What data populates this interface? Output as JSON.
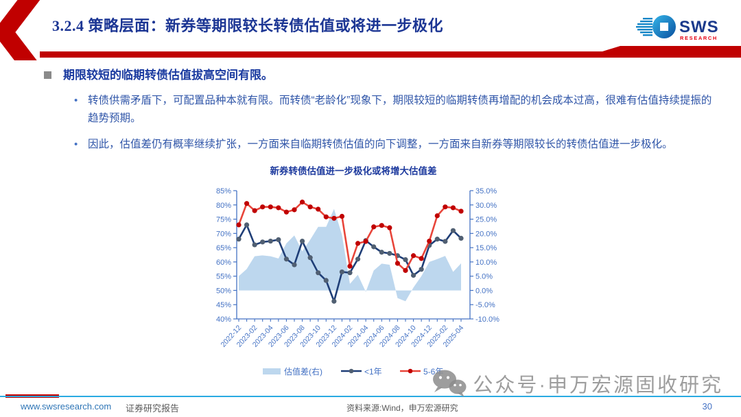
{
  "slide": {
    "title": "3.2.4 策略层面：新券等期限较长转债估值或将进一步极化"
  },
  "logo": {
    "text": "SWS",
    "subtext": "RESEARCH"
  },
  "bullets": {
    "heading": "期限较短的临期转债估值拔高空间有限。",
    "items": [
      "转债供需矛盾下，可配置品种本就有限。而转债“老龄化”现象下，期限较短的临期转债再增配的机会成本过高，很难有估值持续提振的趋势预期。",
      "因此，估值差仍有概率继续扩张，一方面来自临期转债估值的向下调整，一方面来自新券等期限较长的转债估值进一步极化。"
    ]
  },
  "watermark": {
    "text": "公众号·申万宏源固收研究"
  },
  "footer": {
    "website": "www.swsresearch.com",
    "report_type": "证券研究报告",
    "source": "资料来源:Wind，申万宏源研究",
    "page": "30"
  },
  "colors": {
    "accent_red": "#c00000",
    "title_blue": "#1c3694",
    "body_blue": "#2f55a8",
    "axis_blue": "#4472c4",
    "area_fill": "#bdd7ee",
    "line_lt1yr": "#1f3e77",
    "marker_lt1yr": "#505f72",
    "line_5_6yr": "#e8453a",
    "marker_5_6yr": "#c00000",
    "footer_line": "#29abe2"
  },
  "chart_data": {
    "type": "line",
    "title": "新券转债估值进一步极化或将增大估值差",
    "categories": [
      "2022-12",
      "2023-01",
      "2023-02",
      "2023-03",
      "2023-04",
      "2023-05",
      "2023-06",
      "2023-07",
      "2023-08",
      "2023-09",
      "2023-10",
      "2023-11",
      "2023-12",
      "2024-01",
      "2024-02",
      "2024-03",
      "2024-04",
      "2024-05",
      "2024-06",
      "2024-07",
      "2024-08",
      "2024-09",
      "2024-10",
      "2024-11",
      "2024-12",
      "2025-01",
      "2025-02",
      "2025-03",
      "2025-04"
    ],
    "x_labeled_indices": [
      0,
      2,
      4,
      6,
      8,
      10,
      12,
      14,
      16,
      18,
      20,
      22,
      24,
      26,
      28
    ],
    "left_axis": {
      "min": 40,
      "max": 85,
      "step": 5,
      "unit": "%",
      "decimals": 0
    },
    "right_axis": {
      "min": -10,
      "max": 35,
      "step": 5,
      "unit": "%",
      "decimals": 1
    },
    "grid": false,
    "legend_position": "bottom",
    "series": [
      {
        "name": "估值差(右)",
        "type": "area",
        "axis": "right",
        "color": "#bdd7ee",
        "values": [
          5.0,
          7.5,
          12.0,
          12.3,
          12.0,
          11.2,
          16.5,
          19.3,
          13.7,
          17.8,
          22.3,
          22.3,
          28.6,
          19.5,
          2.3,
          5.5,
          -0.5,
          7.0,
          9.4,
          9.0,
          -2.7,
          -3.8,
          1.0,
          5.0,
          10.0,
          11.0,
          12.1,
          6.5,
          9.5
        ]
      },
      {
        "name": "<1年",
        "type": "line",
        "axis": "left",
        "color": "#1f3e77",
        "marker_color": "#505f72",
        "values": [
          68.0,
          73.0,
          66.0,
          67.0,
          67.3,
          67.8,
          61.0,
          59.0,
          67.3,
          61.5,
          56.2,
          53.5,
          46.2,
          56.5,
          56.2,
          61.0,
          67.5,
          65.3,
          63.4,
          63.0,
          62.2,
          60.8,
          55.3,
          57.4,
          65.8,
          68.0,
          67.2,
          71.0,
          68.3
        ]
      },
      {
        "name": "5-6年",
        "type": "line",
        "axis": "left",
        "color": "#e8453a",
        "marker_color": "#c00000",
        "values": [
          73.0,
          80.5,
          78.0,
          79.3,
          79.3,
          79.0,
          77.5,
          78.3,
          81.0,
          79.3,
          78.5,
          75.8,
          75.3,
          76.0,
          58.5,
          66.5,
          67.2,
          72.3,
          72.8,
          72.0,
          59.5,
          57.0,
          62.2,
          61.2,
          67.3,
          76.2,
          79.3,
          79.0,
          77.8
        ]
      }
    ]
  }
}
